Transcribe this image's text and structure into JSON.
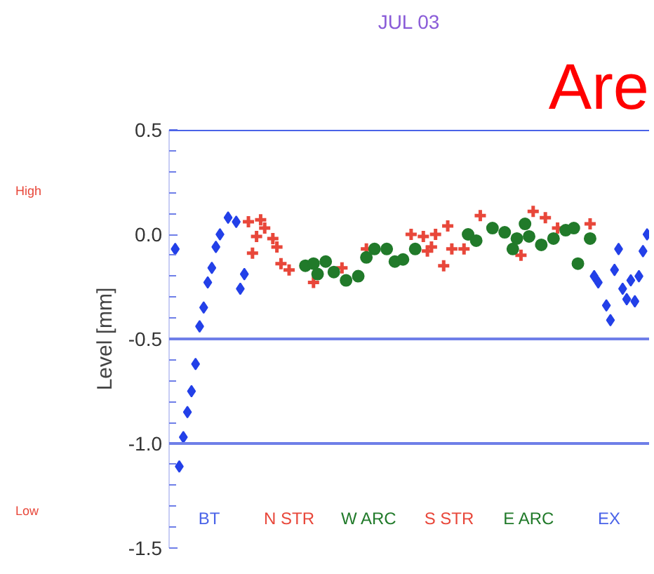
{
  "chart_data": {
    "type": "scatter",
    "title": "JUL 03",
    "ylabel": "Level [mm]",
    "categories": [
      null,
      null,
      null,
      null,
      null,
      null,
      null,
      null,
      null,
      null,
      null,
      null,
      null,
      null,
      null,
      null,
      null,
      null,
      null,
      null,
      null,
      null,
      null,
      null,
      null,
      null,
      null,
      null,
      null,
      null,
      null,
      null,
      null,
      null,
      null,
      null,
      null,
      null,
      null,
      null,
      null,
      null,
      null,
      null,
      null,
      null,
      null,
      null,
      null,
      null,
      null,
      null,
      null,
      null,
      null,
      null,
      null,
      null,
      null,
      null,
      null,
      null,
      null,
      null,
      null,
      null,
      null,
      null,
      null,
      null,
      null,
      null,
      null,
      null,
      null,
      null,
      null,
      null,
      null,
      null,
      null,
      null,
      null,
      null,
      null,
      null,
      null,
      null,
      null,
      null,
      null,
      null,
      null,
      null,
      null,
      null,
      null,
      null,
      null,
      null,
      null,
      null,
      null,
      null,
      null,
      null,
      null,
      null,
      null,
      null,
      null,
      null,
      null,
      null,
      null,
      null,
      null,
      null
    ],
    "series": [
      {
        "color": "#2340e8",
        "marker": "diamond",
        "values": [
          null,
          -0.07,
          -1.11,
          -0.97,
          -0.85,
          -0.75,
          -0.62,
          -0.44,
          -0.35,
          -0.23,
          -0.16,
          -0.06,
          0.0,
          null,
          0.08,
          null,
          0.06,
          -0.26,
          -0.19,
          null,
          null,
          null,
          null,
          null,
          null,
          null,
          null,
          null,
          null,
          null,
          null,
          null,
          null,
          null,
          null,
          null,
          null,
          null,
          null,
          null,
          null,
          null,
          null,
          null,
          null,
          null,
          null,
          null,
          null,
          null,
          null,
          null,
          null,
          null,
          null,
          null,
          null,
          null,
          null,
          null,
          null,
          null,
          null,
          null,
          null,
          null,
          null,
          null,
          null,
          null,
          null,
          null,
          null,
          null,
          null,
          null,
          null,
          null,
          null,
          null,
          null,
          null,
          null,
          null,
          null,
          null,
          null,
          null,
          null,
          null,
          null,
          null,
          null,
          null,
          null,
          null,
          null,
          null,
          null,
          null,
          null,
          null,
          null,
          null,
          -0.2,
          -0.23,
          null,
          -0.34,
          -0.41,
          -0.17,
          -0.07,
          -0.26,
          -0.31,
          -0.22,
          -0.32,
          -0.2,
          -0.08,
          0.0
        ]
      },
      {
        "color": "#e8473a",
        "marker": "cross",
        "values": [
          null,
          null,
          null,
          null,
          null,
          null,
          null,
          null,
          null,
          null,
          null,
          null,
          null,
          null,
          null,
          null,
          null,
          null,
          null,
          0.06,
          -0.09,
          -0.01,
          0.07,
          0.03,
          null,
          -0.02,
          -0.06,
          -0.14,
          null,
          -0.17,
          null,
          null,
          null,
          null,
          null,
          -0.23,
          null,
          null,
          null,
          null,
          null,
          null,
          -0.16,
          null,
          null,
          null,
          null,
          null,
          -0.07,
          null,
          null,
          null,
          null,
          null,
          null,
          null,
          null,
          null,
          null,
          0.0,
          null,
          null,
          -0.01,
          -0.08,
          -0.06,
          0.0,
          null,
          -0.15,
          0.04,
          -0.07,
          null,
          null,
          -0.07,
          null,
          null,
          null,
          0.09,
          null,
          null,
          null,
          null,
          null,
          null,
          null,
          null,
          null,
          -0.1,
          null,
          null,
          0.11,
          null,
          null,
          0.08,
          null,
          null,
          0.03,
          null,
          null,
          null,
          null,
          null,
          null,
          null,
          0.05,
          null,
          null,
          null,
          null,
          null,
          null,
          null,
          null,
          null,
          null,
          null,
          null,
          null,
          null
        ]
      },
      {
        "color": "#217a2a",
        "marker": "circle",
        "values": [
          null,
          null,
          null,
          null,
          null,
          null,
          null,
          null,
          null,
          null,
          null,
          null,
          null,
          null,
          null,
          null,
          null,
          null,
          null,
          null,
          null,
          null,
          null,
          null,
          null,
          null,
          null,
          null,
          null,
          null,
          null,
          null,
          null,
          -0.15,
          null,
          -0.14,
          -0.19,
          null,
          -0.13,
          null,
          -0.18,
          null,
          null,
          -0.22,
          null,
          null,
          -0.2,
          null,
          -0.11,
          null,
          -0.07,
          null,
          null,
          -0.07,
          null,
          -0.13,
          null,
          -0.12,
          null,
          null,
          -0.07,
          null,
          null,
          null,
          null,
          null,
          null,
          null,
          null,
          null,
          null,
          null,
          null,
          0.0,
          null,
          -0.03,
          null,
          null,
          null,
          0.03,
          null,
          null,
          0.01,
          null,
          -0.07,
          -0.02,
          null,
          0.05,
          -0.01,
          null,
          null,
          -0.05,
          null,
          null,
          -0.02,
          null,
          null,
          0.02,
          null,
          0.03,
          -0.14,
          null,
          null,
          -0.02,
          null,
          null,
          null,
          null,
          null,
          null,
          null,
          null,
          null,
          null,
          null,
          null,
          null,
          null
        ]
      }
    ],
    "ylim": [
      -1.5,
      0.5
    ],
    "yticks": [
      {
        "value": 0.5,
        "label": "0.5"
      },
      {
        "value": 0.0,
        "label": "0.0"
      },
      {
        "value": -0.5,
        "label": "-0.5"
      },
      {
        "value": -1.0,
        "label": "-1.0"
      },
      {
        "value": -1.5,
        "label": "-1.5"
      }
    ],
    "ref_lines": [
      {
        "axis": "y",
        "value": -0.5,
        "color": "#6f7fe8"
      },
      {
        "axis": "y",
        "value": -1.0,
        "color": "#6f7fe8"
      }
    ],
    "tick_labels": "y",
    "grid": false,
    "legend": false,
    "annotations": [
      "High",
      "Low",
      "BT",
      "N STR",
      "W ARC",
      "S STR",
      "E ARC",
      "EX",
      "Are"
    ]
  }
}
